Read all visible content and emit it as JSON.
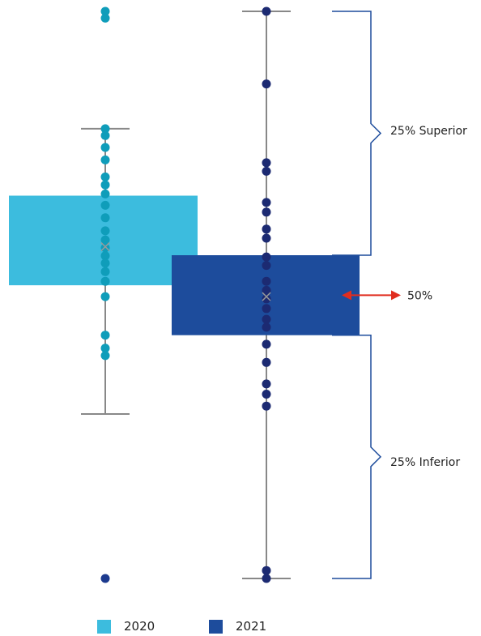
{
  "chart_data": {
    "type": "box",
    "y_direction": "higher values at top",
    "ylim": [
      0,
      100
    ],
    "grid": false,
    "legend_position": "bottom",
    "series": [
      {
        "name": "2020",
        "color": "#3cbcde",
        "point_color": "#0f9dba",
        "outlier_color": "#1c3a8e",
        "whisker_low": 29.0,
        "q1": 51.7,
        "mean": 58.5,
        "q3": 67.5,
        "whisker_high": 79.3,
        "points": [
          79.3,
          78.1,
          76.0,
          73.8,
          70.8,
          69.4,
          67.8,
          65.8,
          63.6,
          61.3,
          59.7,
          58.3,
          56.9,
          55.6,
          54.1,
          52.4,
          49.7,
          42.9,
          40.6,
          39.3
        ],
        "outliers": [
          100.0,
          98.8,
          0.0
        ]
      },
      {
        "name": "2021",
        "color": "#1d4c9c",
        "point_color": "#1c2a72",
        "whisker_low": 0.0,
        "q1": 42.9,
        "mean": 49.7,
        "q3": 57.0,
        "whisker_high": 100.0,
        "points": [
          100.0,
          87.2,
          73.3,
          71.8,
          66.3,
          64.6,
          61.6,
          60.0,
          56.7,
          55.2,
          52.4,
          50.8,
          49.3,
          47.6,
          45.7,
          44.3,
          41.3,
          38.1,
          34.3,
          32.5,
          30.4,
          1.4,
          0.0
        ]
      }
    ],
    "annotations": {
      "upper_label": "25% Superior",
      "middle_label": "50%",
      "lower_label": "25% Inferior",
      "bracket_color": "#1d4c9c",
      "arrow_color": "#e02d1f"
    }
  }
}
